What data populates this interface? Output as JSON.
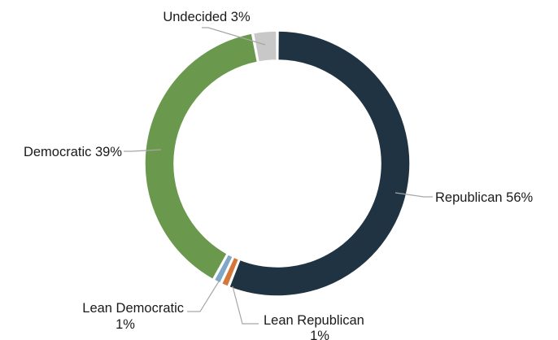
{
  "chart_data": {
    "type": "pie",
    "variant": "donut",
    "title": "",
    "slices": [
      {
        "label": "Republican",
        "value": 56,
        "display": "Republican 56%",
        "color": "#1f3342"
      },
      {
        "label": "Lean Republican",
        "value": 1,
        "display_lines": [
          "Lean Republican",
          "1%"
        ],
        "color": "#d5773b"
      },
      {
        "label": "Lean Democratic",
        "value": 1,
        "display_lines": [
          "Lean Democratic",
          "1%"
        ],
        "color": "#7fa7c6"
      },
      {
        "label": "Democratic",
        "value": 39,
        "display": "Democratic 39%",
        "color": "#6a994e"
      },
      {
        "label": "Undecided",
        "value": 3,
        "display": "Undecided 3%",
        "color": "#c8c8c8"
      }
    ],
    "legend": "none",
    "leader_line_color": "#a6a6a6"
  }
}
